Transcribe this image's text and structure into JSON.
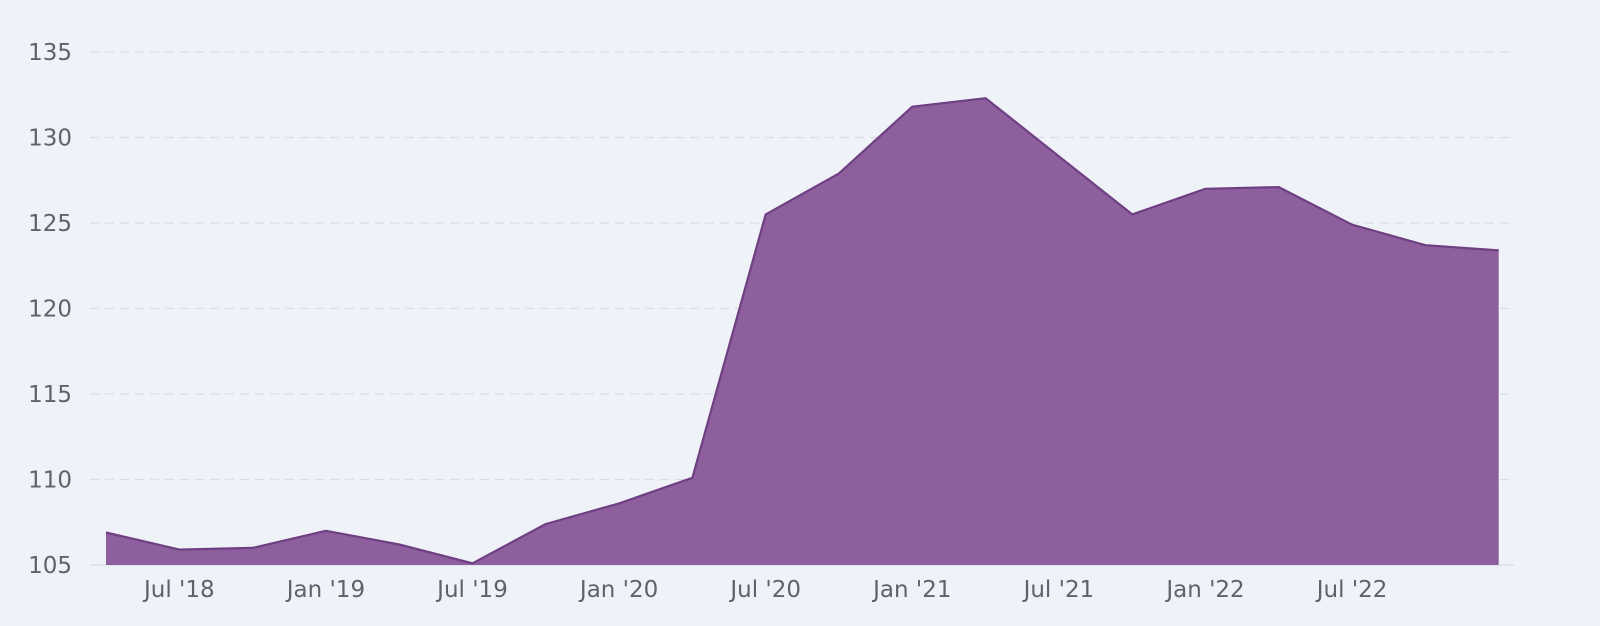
{
  "chart_data": {
    "type": "area",
    "title": "",
    "xlabel": "",
    "ylabel": "",
    "ylim": [
      105,
      135
    ],
    "yticks": [
      105,
      110,
      115,
      120,
      125,
      130,
      135
    ],
    "xticks": [
      "Jul '18",
      "Jan '19",
      "Jul '19",
      "Jan '20",
      "Jul '20",
      "Jan '21",
      "Jul '21",
      "Jan '22",
      "Jul '22"
    ],
    "grid": true,
    "legend": "none",
    "colors": {
      "fill": "#8d609d",
      "line": "#6f3f83",
      "background": "#eff3f9",
      "grid": "#d8dde6",
      "tick_text": "#5f6368"
    },
    "series": [
      {
        "x": [
          "2018-04",
          "2018-07",
          "2018-10",
          "2019-01",
          "2019-04",
          "2019-07",
          "2019-10",
          "2020-01",
          "2020-04",
          "2020-07",
          "2020-10",
          "2021-01",
          "2021-04",
          "2021-07",
          "2021-10",
          "2022-01",
          "2022-04",
          "2022-07",
          "2022-10",
          "2023-01"
        ],
        "values": [
          106.9,
          105.9,
          106.0,
          107.0,
          106.2,
          105.1,
          107.4,
          108.6,
          110.1,
          125.5,
          127.9,
          131.8,
          132.3,
          128.9,
          125.5,
          127.0,
          127.1,
          124.9,
          123.7,
          123.4
        ]
      }
    ]
  }
}
